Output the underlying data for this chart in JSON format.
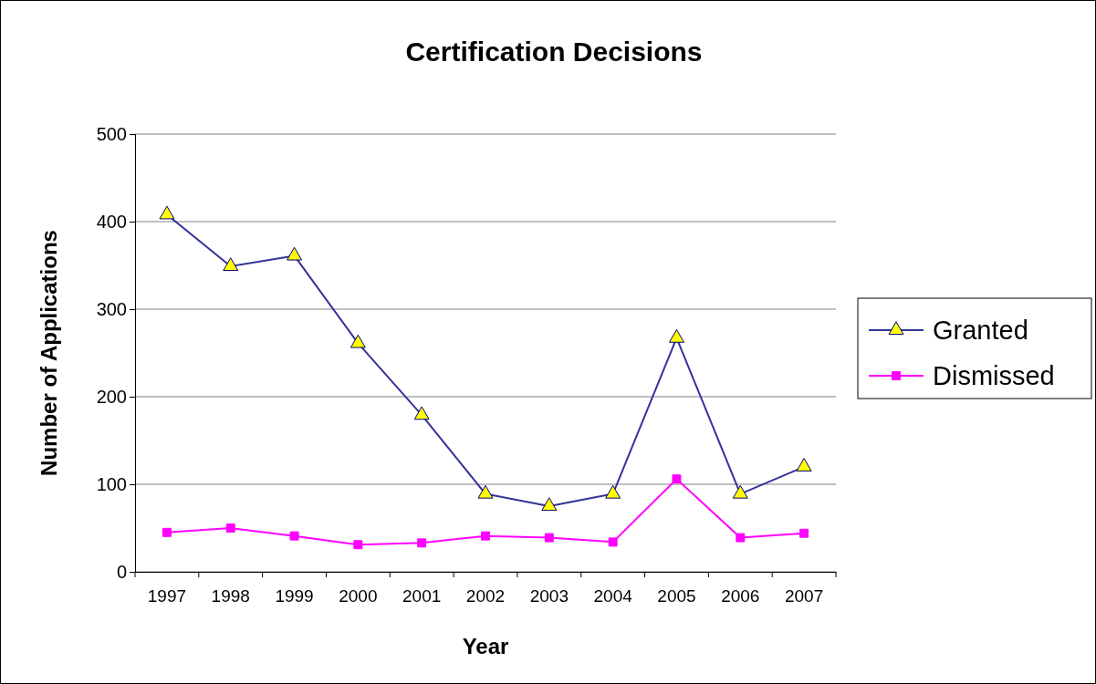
{
  "chart_data": {
    "type": "line",
    "title": "Certification Decisions",
    "xlabel": "Year",
    "ylabel": "Number of Applications",
    "categories": [
      "1997",
      "1998",
      "1999",
      "2000",
      "2001",
      "2002",
      "2003",
      "2004",
      "2005",
      "2006",
      "2007"
    ],
    "series": [
      {
        "name": "Granted",
        "color": "#333399",
        "marker": "triangle",
        "values": [
          408,
          349,
          361,
          261,
          179,
          89,
          75,
          89,
          267,
          89,
          120
        ]
      },
      {
        "name": "Dismissed",
        "color": "#ff00ff",
        "marker": "square",
        "values": [
          45,
          50,
          41,
          31,
          33,
          41,
          39,
          34,
          106,
          39,
          44
        ]
      }
    ],
    "ylim": [
      0,
      500
    ],
    "yticks": [
      0,
      100,
      200,
      300,
      400,
      500
    ],
    "grid": "y",
    "legend": "right",
    "line_style": "solid"
  }
}
